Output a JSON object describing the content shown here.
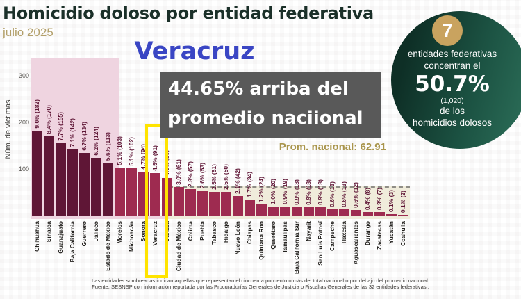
{
  "header": {
    "title": "Homicidio doloso por entidad federativa",
    "subtitle": "julio 2025"
  },
  "overlay": {
    "highlighted_state": "Veracruz",
    "box_line1": "44.65% arriba del",
    "box_line2": "promedio naciional"
  },
  "badge": {
    "count": "7",
    "line1": "entidades federativas",
    "line2": "concentran el",
    "percentage": "50.7%",
    "absolute": "(1,020)",
    "line3": "de los",
    "line4": "homicidios dolosos"
  },
  "chart_data": {
    "type": "bar",
    "title": "Homicidio doloso por entidad federativa",
    "subtitle": "julio 2025",
    "ylabel": "Núm. de víctimas",
    "yticks": [
      100,
      200,
      300
    ],
    "ylim": [
      0,
      320
    ],
    "grid": false,
    "national_average": 62.91,
    "national_average_label": "Prom. nacional: 62.91",
    "highlighted_state": "Veracruz",
    "highlighted_state_index": 10,
    "top_group_count": 7,
    "below_average_start_index": 12,
    "categories": [
      "Chihuahua",
      "Sinaloa",
      "Guanajuato",
      "Baja California",
      "Guerrero",
      "Jalisco",
      "Estado de México",
      "Morelos",
      "Michoacán",
      "Sonora",
      "Veracruz",
      "Oaxaca",
      "Ciudad de México",
      "Colima",
      "Puebla",
      "Tabasco",
      "Hidalgo",
      "Nuevo León",
      "Chiapas",
      "Quintana Roo",
      "Querétaro",
      "Tamaulipas",
      "Baja California Sur",
      "Nayarit",
      "San Luis Potosí",
      "Campeche",
      "Tlaxcala",
      "Aguascalientes",
      "Durango",
      "Zacatecas",
      "Yucatán",
      "Coahuila"
    ],
    "values": [
      182,
      170,
      155,
      142,
      134,
      124,
      113,
      103,
      102,
      94,
      91,
      80,
      61,
      57,
      53,
      51,
      50,
      42,
      34,
      24,
      20,
      19,
      18,
      18,
      18,
      13,
      13,
      12,
      8,
      7,
      3,
      2
    ],
    "pct_labels": [
      "9.0%",
      "8.4%",
      "7.7%",
      "7.1%",
      "6.7%",
      "6.2%",
      "5.6%",
      "5.1%",
      "5.1%",
      "4.7%",
      "4.5%",
      "4.0%",
      "3.0%",
      "2.8%",
      "2.6%",
      "2.5%",
      "2.5%",
      "2.1%",
      "1.7%",
      "1.2%",
      "1.0%",
      "0.9%",
      "0.9%",
      "0.9%",
      "0.9%",
      "0.6%",
      "0.6%",
      "0.6%",
      "0.4%",
      "0.3%",
      "0.1%",
      "0.1%"
    ]
  },
  "footer": {
    "line1": "Las entidades sombreadas indican aquellas que representan el cincuenta porciento o más del total nacional o por debajo del promedio nacional.",
    "line2": "Fuente: SESNSP con información reportada por las Procuradurías Generales de Justicia o Fiscalías Generales de las 32 entidades federativas.."
  },
  "colors": {
    "bar_dark": "#5f1636",
    "bar_light": "#9e2b50",
    "pink_shade": "#efd4e0",
    "beige_shade": "#f0ecdb",
    "highlight_yellow": "#ffe400",
    "title_green": "#1b3029",
    "subtitle_tan": "#b3a06b",
    "veracruz_blue": "#3a46c4",
    "graybox_bg": "#595959",
    "prom_gold": "#a9954c",
    "badge_green_dark": "#0e2f26",
    "badge_green_light": "#2d705a",
    "badge_gold": "#c9a35f"
  }
}
